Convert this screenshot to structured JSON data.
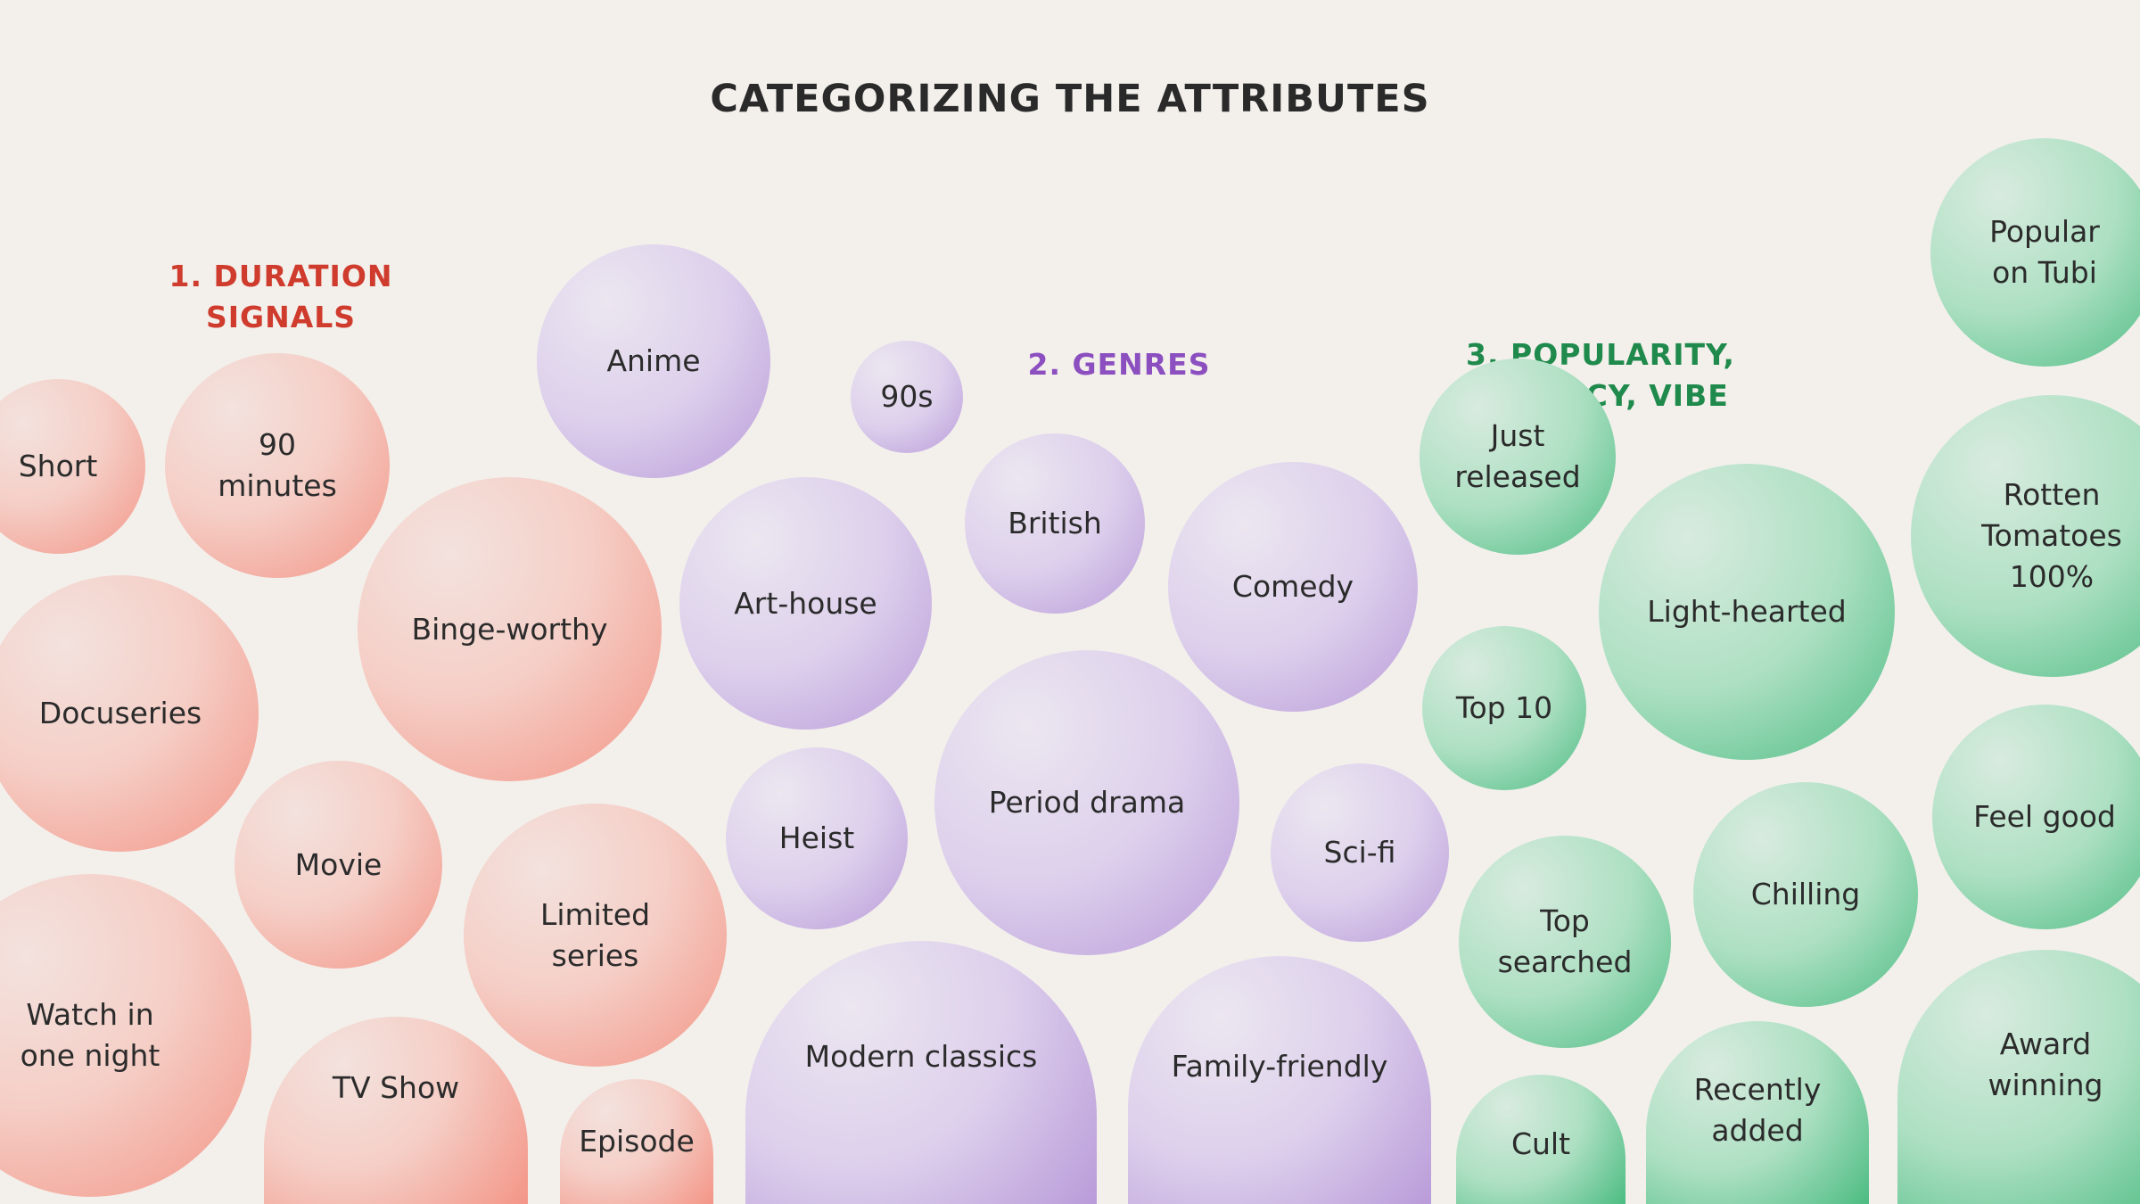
{
  "title": "CATEGORIZING THE ATTRIBUTES",
  "groups": {
    "duration": {
      "label": "1. DURATION SIGNALS",
      "color": "#cf3b2c",
      "items": [
        "Short",
        "90\nminutes",
        "Binge-worthy",
        "Docuseries",
        "Movie",
        "Limited\nseries",
        "Watch in\none night",
        "TV Show",
        "Episode"
      ]
    },
    "genres": {
      "label": "2. GENRES",
      "color": "#8c4fc0",
      "items": [
        "Anime",
        "90s",
        "British",
        "Art-house",
        "Comedy",
        "Period drama",
        "Heist",
        "Sci-fi",
        "Modern classics",
        "Family-friendly"
      ]
    },
    "popularity": {
      "label": "3. POPULARITY,\nRECENCY, VIBE",
      "color": "#1f8a4c",
      "items": [
        "Popular\non Tubi",
        "Just\nreleased",
        "Rotten\nTomatoes\n100%",
        "Light-hearted",
        "Top 10",
        "Feel good",
        "Chilling",
        "Top\nsearched",
        "Award\nwinning",
        "Recently\nadded",
        "Cult"
      ]
    }
  }
}
